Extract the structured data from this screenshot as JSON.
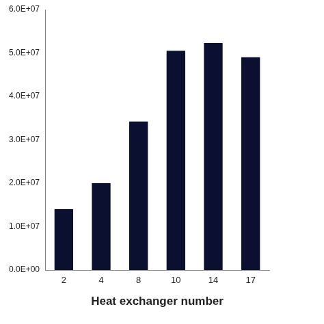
{
  "chart_data": {
    "type": "bar",
    "x_label": "Heat exchanger number",
    "categories": [
      "2",
      "4",
      "8",
      "10",
      "14",
      "17"
    ],
    "values": [
      14000000,
      20000000,
      34200000,
      50500000,
      52300000,
      49000000
    ],
    "color": "#0b1030",
    "ylim": [
      0,
      60000000
    ],
    "yticks": [
      {
        "value": 0,
        "label": "0.0E+00"
      },
      {
        "value": 10000000,
        "label": "1.0E+07"
      },
      {
        "value": 20000000,
        "label": "2.0E+07"
      },
      {
        "value": 30000000,
        "label": "3.0E+07"
      },
      {
        "value": 40000000,
        "label": "4.0E+07"
      },
      {
        "value": 50000000,
        "label": "5.0E+07"
      },
      {
        "value": 60000000,
        "label": "6.0E+07"
      }
    ],
    "grid": false
  }
}
